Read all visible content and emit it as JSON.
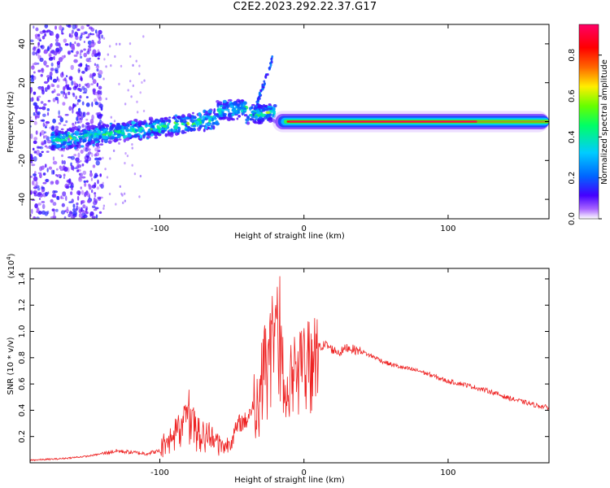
{
  "page": {
    "title": "C2E2.2023.292.22.37.G17"
  },
  "colors": {
    "snr_line": "#ee2222",
    "colorbar": [
      "#ffffff",
      "#4400ff",
      "#0066ff",
      "#00ccff",
      "#00ff66",
      "#66ff00",
      "#ffee00",
      "#ff6600",
      "#ff0000",
      "#ff0066"
    ]
  },
  "chart_data": [
    {
      "type": "heatmap",
      "title": "",
      "xlabel": "Height of straight line (km)",
      "ylabel": "Frequency (Hz)",
      "xlim": [
        -190,
        170
      ],
      "ylim": [
        -50,
        50
      ],
      "x_ticks": [
        -100,
        0,
        100
      ],
      "y_ticks": [
        -40,
        -20,
        0,
        20,
        40
      ],
      "colorbar": {
        "label": "Normalized spectral amplitude",
        "range": [
          0,
          0.95
        ],
        "ticks": [
          0.0,
          0.2,
          0.4,
          0.6,
          0.8
        ]
      },
      "features": [
        {
          "x": [
            -190,
            -140
          ],
          "freq_center": 0,
          "amplitude_peak": 0.15,
          "kind": "scattered noise"
        },
        {
          "x": [
            -175,
            -20
          ],
          "freq_center": [
            -10,
            5
          ],
          "amplitude_peak": 0.45,
          "kind": "drifting signal"
        },
        {
          "x": [
            -35,
            -22
          ],
          "freq_center": [
            5,
            32
          ],
          "amplitude_peak": 0.25,
          "kind": "hook"
        },
        {
          "x": [
            -20,
            170
          ],
          "freq_center": 0,
          "amplitude_peak": 0.92,
          "kind": "steady carrier"
        }
      ]
    },
    {
      "type": "line",
      "title": "",
      "xlabel": "Height of straight line (km)",
      "ylabel": "SNR (10 * v/v)",
      "y_multiplier": "(x10^4)",
      "xlim": [
        -190,
        170
      ],
      "ylim": [
        0,
        1.48
      ],
      "x_ticks": [
        -100,
        0,
        100
      ],
      "y_ticks": [
        0.2,
        0.4,
        0.6,
        0.8,
        1.0,
        1.2,
        1.4
      ],
      "series": [
        {
          "x": [
            -190,
            -170,
            -150,
            -140,
            -130,
            -120,
            -110,
            -100,
            -95,
            -90,
            -85,
            -80,
            -75,
            -70,
            -65,
            -60,
            -55,
            -50,
            -45,
            -40,
            -35,
            -30,
            -25,
            -20,
            -17,
            -15,
            -12,
            -10,
            -5,
            0,
            5,
            10,
            15,
            20,
            25,
            30,
            35,
            40,
            45,
            50,
            55,
            60,
            70,
            80,
            90,
            100,
            110,
            120,
            130,
            140,
            150,
            160,
            170
          ],
          "values": [
            0.02,
            0.03,
            0.05,
            0.07,
            0.09,
            0.08,
            0.07,
            0.09,
            0.18,
            0.25,
            0.3,
            0.45,
            0.28,
            0.25,
            0.22,
            0.18,
            0.12,
            0.18,
            0.3,
            0.32,
            0.45,
            0.72,
            0.9,
            1.1,
            1.3,
            0.85,
            0.5,
            0.65,
            0.85,
            0.82,
            0.85,
            0.88,
            0.9,
            0.86,
            0.84,
            0.88,
            0.86,
            0.85,
            0.82,
            0.8,
            0.77,
            0.75,
            0.72,
            0.7,
            0.66,
            0.62,
            0.6,
            0.57,
            0.54,
            0.5,
            0.47,
            0.44,
            0.42
          ]
        }
      ]
    }
  ]
}
